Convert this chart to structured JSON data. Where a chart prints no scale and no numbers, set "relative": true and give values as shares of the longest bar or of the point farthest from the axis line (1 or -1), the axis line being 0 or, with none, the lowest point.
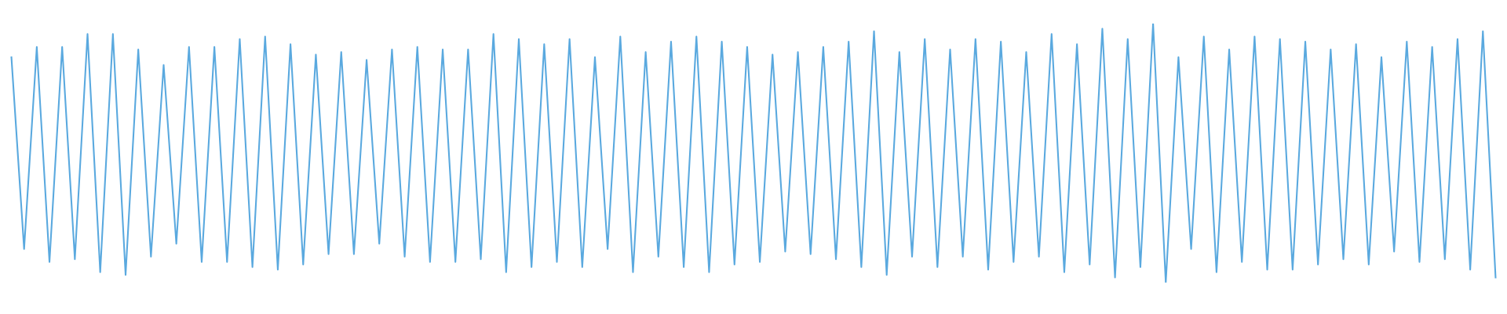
{
  "chart_data": {
    "type": "line",
    "relative": true,
    "color": "#5aa9df",
    "categories": [
      null,
      null,
      null,
      null,
      null,
      null,
      null,
      null,
      null,
      null,
      null,
      null,
      null,
      null,
      null,
      null,
      null,
      null,
      null,
      null,
      null,
      null,
      null,
      null,
      null,
      null,
      null,
      null,
      null,
      null,
      null,
      null,
      null,
      null,
      null,
      null,
      null,
      null,
      null,
      null,
      null,
      null,
      null,
      null,
      null,
      null,
      null,
      null,
      null,
      null,
      null,
      null,
      null,
      null,
      null,
      null,
      null,
      null,
      null,
      null,
      null,
      null,
      null,
      null,
      null,
      null,
      null,
      null,
      null,
      null,
      null,
      null,
      null,
      null,
      null,
      null,
      null,
      null,
      null,
      null,
      null,
      null,
      null,
      null,
      null,
      null,
      null,
      null,
      null,
      null,
      null,
      null,
      null,
      null,
      null,
      null,
      null,
      null,
      null,
      null,
      null,
      null,
      null,
      null,
      null,
      null,
      null,
      null,
      null,
      null,
      null,
      null,
      null,
      null,
      null,
      null,
      null,
      null
    ],
    "values": [
      0.87,
      0.13,
      0.91,
      0.08,
      0.91,
      0.09,
      0.96,
      0.04,
      0.96,
      0.03,
      0.9,
      0.1,
      0.84,
      0.15,
      0.91,
      0.08,
      0.91,
      0.08,
      0.94,
      0.06,
      0.95,
      0.05,
      0.92,
      0.07,
      0.88,
      0.11,
      0.89,
      0.11,
      0.86,
      0.15,
      0.9,
      0.1,
      0.91,
      0.08,
      0.9,
      0.08,
      0.9,
      0.09,
      0.96,
      0.04,
      0.94,
      0.06,
      0.92,
      0.08,
      0.94,
      0.06,
      0.87,
      0.13,
      0.95,
      0.04,
      0.89,
      0.1,
      0.93,
      0.06,
      0.95,
      0.04,
      0.93,
      0.07,
      0.91,
      0.08,
      0.88,
      0.12,
      0.89,
      0.11,
      0.91,
      0.09,
      0.93,
      0.06,
      0.97,
      0.03,
      0.89,
      0.1,
      0.94,
      0.06,
      0.9,
      0.1,
      0.94,
      0.05,
      0.93,
      0.08,
      0.89,
      0.1,
      0.96,
      0.04,
      0.92,
      0.07,
      0.98,
      0.02,
      0.94,
      0.06,
      1.0,
      0,
      0.87,
      0.13,
      0.95,
      0.04,
      0.9,
      0.08,
      0.95,
      0.05,
      0.94,
      0.05,
      0.93,
      0.07,
      0.9,
      0.09,
      0.92,
      0.07,
      0.87,
      0.12,
      0.93,
      0.08,
      0.91,
      0.09,
      0.94,
      0.05,
      0.97,
      0.02
    ]
  }
}
